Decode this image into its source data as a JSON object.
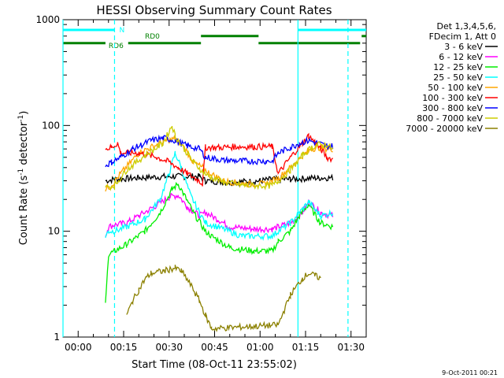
{
  "chart_data": {
    "type": "line",
    "title": "HESSI Observing Summary Count Rates",
    "xlabel": "Start Time (08-Oct-11 23:55:02)",
    "ylabel_parts": [
      "Count Rate (s",
      "-1",
      " detector",
      "-1",
      ")"
    ],
    "yscale": "log",
    "ylim": [
      1,
      1000
    ],
    "xlim_minutes": [
      -5,
      95
    ],
    "x_tick_minutes": [
      0,
      15,
      30,
      45,
      60,
      75,
      90
    ],
    "x_tick_labels": [
      "00:00",
      "00:15",
      "00:30",
      "00:45",
      "01:00",
      "01:15",
      "01:30"
    ],
    "y_tick_labels": [
      {
        "v": 1,
        "label": "1"
      },
      {
        "v": 10,
        "label": "10"
      },
      {
        "v": 100,
        "label": "100"
      },
      {
        "v": 1000,
        "label": "1000"
      }
    ],
    "legend_header": [
      "Det 1,3,4,5,6,",
      "FDecim 1, Att 0"
    ],
    "legend_placement": "right-outside",
    "series": [
      {
        "name": "3 - 6 keV",
        "color": "#000000",
        "points": [
          [
            9,
            30
          ],
          [
            12,
            31
          ],
          [
            20,
            32
          ],
          [
            30,
            33
          ],
          [
            40,
            33
          ],
          [
            42,
            30
          ],
          [
            50,
            29
          ],
          [
            60,
            30
          ],
          [
            64,
            31
          ],
          [
            70,
            31
          ],
          [
            79,
            32
          ],
          [
            84,
            32
          ]
        ]
      },
      {
        "name": "6 - 12 keV",
        "color": "#ff00ff",
        "points": [
          [
            9,
            9
          ],
          [
            10,
            11
          ],
          [
            12,
            11.5
          ],
          [
            16,
            12
          ],
          [
            20,
            14
          ],
          [
            25,
            17
          ],
          [
            30,
            21
          ],
          [
            33,
            22
          ],
          [
            36,
            17
          ],
          [
            40,
            14
          ],
          [
            42,
            15
          ],
          [
            46,
            13
          ],
          [
            50,
            11
          ],
          [
            58,
            10.5
          ],
          [
            64,
            10.5
          ],
          [
            66,
            11
          ],
          [
            70,
            12
          ],
          [
            74,
            15
          ],
          [
            76,
            19
          ],
          [
            79,
            16
          ],
          [
            80,
            15
          ],
          [
            84,
            14
          ]
        ]
      },
      {
        "name": "12 - 25 keV",
        "color": "#00ee00",
        "points": [
          [
            9,
            2
          ],
          [
            10,
            6
          ],
          [
            12,
            6.5
          ],
          [
            16,
            7.5
          ],
          [
            22,
            10
          ],
          [
            27,
            15
          ],
          [
            31,
            25
          ],
          [
            33,
            28
          ],
          [
            35,
            22
          ],
          [
            38,
            15
          ],
          [
            42,
            10
          ],
          [
            44,
            9
          ],
          [
            50,
            7
          ],
          [
            58,
            6.5
          ],
          [
            64,
            6.5
          ],
          [
            66,
            8
          ],
          [
            70,
            10
          ],
          [
            73,
            14
          ],
          [
            76,
            18
          ],
          [
            79,
            13
          ],
          [
            80,
            12
          ],
          [
            84,
            11
          ]
        ]
      },
      {
        "name": "25 - 50 keV",
        "color": "#00ffff",
        "points": [
          [
            9,
            9
          ],
          [
            10,
            10
          ],
          [
            12,
            10
          ],
          [
            16,
            11
          ],
          [
            22,
            13
          ],
          [
            27,
            20
          ],
          [
            30,
            35
          ],
          [
            32,
            55
          ],
          [
            34,
            40
          ],
          [
            37,
            22
          ],
          [
            40,
            15
          ],
          [
            42,
            12
          ],
          [
            46,
            11
          ],
          [
            54,
            9
          ],
          [
            64,
            9
          ],
          [
            66,
            10
          ],
          [
            70,
            12
          ],
          [
            73,
            15
          ],
          [
            76,
            19
          ],
          [
            79,
            15
          ],
          [
            80,
            14
          ],
          [
            84,
            15
          ]
        ]
      },
      {
        "name": "50 - 100 keV",
        "color": "#ffa500",
        "points": [
          [
            9,
            25
          ],
          [
            11,
            27
          ],
          [
            14,
            35
          ],
          [
            20,
            55
          ],
          [
            28,
            70
          ],
          [
            32,
            75
          ],
          [
            35,
            62
          ],
          [
            38,
            45
          ],
          [
            41,
            40
          ],
          [
            43,
            36
          ],
          [
            48,
            30
          ],
          [
            55,
            28
          ],
          [
            62,
            28
          ],
          [
            66,
            32
          ],
          [
            70,
            40
          ],
          [
            74,
            52
          ],
          [
            77,
            60
          ],
          [
            79,
            62
          ],
          [
            82,
            60
          ],
          [
            84,
            60
          ]
        ]
      },
      {
        "name": "100 - 300 keV",
        "color": "#ff0000",
        "points": [
          [
            9,
            60
          ],
          [
            11,
            62
          ],
          [
            13,
            68
          ],
          [
            14,
            55
          ],
          [
            20,
            55
          ],
          [
            26,
            50
          ],
          [
            30,
            45
          ],
          [
            33,
            40
          ],
          [
            36,
            35
          ],
          [
            40,
            30
          ],
          [
            41,
            28
          ],
          [
            42,
            62
          ],
          [
            47,
            62
          ],
          [
            52,
            63
          ],
          [
            58,
            63
          ],
          [
            64,
            63
          ],
          [
            66,
            35
          ],
          [
            70,
            50
          ],
          [
            74,
            68
          ],
          [
            76,
            80
          ],
          [
            78,
            70
          ],
          [
            80,
            60
          ],
          [
            82,
            50
          ],
          [
            84,
            48
          ]
        ]
      },
      {
        "name": "300 - 800 keV",
        "color": "#0000ff",
        "points": [
          [
            9,
            42
          ],
          [
            11,
            45
          ],
          [
            14,
            50
          ],
          [
            18,
            60
          ],
          [
            24,
            72
          ],
          [
            28,
            76
          ],
          [
            32,
            72
          ],
          [
            36,
            64
          ],
          [
            40,
            60
          ],
          [
            42,
            50
          ],
          [
            48,
            47
          ],
          [
            55,
            46
          ],
          [
            62,
            46
          ],
          [
            64,
            46
          ],
          [
            66,
            55
          ],
          [
            70,
            62
          ],
          [
            73,
            68
          ],
          [
            76,
            72
          ],
          [
            79,
            68
          ],
          [
            82,
            64
          ],
          [
            84,
            64
          ]
        ]
      },
      {
        "name": "800 - 7000 keV",
        "color": "#cccc00",
        "points": [
          [
            9,
            26
          ],
          [
            12,
            27
          ],
          [
            16,
            38
          ],
          [
            22,
            52
          ],
          [
            28,
            68
          ],
          [
            31,
            100
          ],
          [
            32,
            80
          ],
          [
            35,
            60
          ],
          [
            38,
            45
          ],
          [
            41,
            37
          ],
          [
            43,
            33
          ],
          [
            48,
            29
          ],
          [
            55,
            27
          ],
          [
            62,
            27
          ],
          [
            64,
            27
          ],
          [
            66,
            30
          ],
          [
            70,
            38
          ],
          [
            74,
            52
          ],
          [
            77,
            62
          ],
          [
            79,
            66
          ],
          [
            82,
            65
          ],
          [
            84,
            60
          ]
        ]
      },
      {
        "name": "7000 - 20000 keV",
        "color": "#8b8000",
        "points": [
          [
            16,
            1.6
          ],
          [
            18,
            2.2
          ],
          [
            20,
            2.8
          ],
          [
            22,
            3.5
          ],
          [
            24,
            4
          ],
          [
            28,
            4.2
          ],
          [
            32,
            4.5
          ],
          [
            34,
            4.2
          ],
          [
            36,
            3.5
          ],
          [
            38,
            2.8
          ],
          [
            40,
            2.2
          ],
          [
            42,
            1.6
          ],
          [
            44,
            1.2
          ],
          [
            66,
            1.3
          ],
          [
            68,
            1.8
          ],
          [
            70,
            2.5
          ],
          [
            72,
            3
          ],
          [
            74,
            3.6
          ],
          [
            76,
            4
          ],
          [
            78,
            3.8
          ],
          [
            80,
            3.6
          ]
        ]
      }
    ],
    "vertical_markers_minutes": [
      {
        "x": -5,
        "style": "solid"
      },
      {
        "x": 12,
        "style": "dashed"
      },
      {
        "x": 72.5,
        "style": "solid"
      },
      {
        "x": 89,
        "style": "dashed"
      }
    ],
    "status_bars": [
      {
        "label": "N",
        "color": "#00ffff",
        "y": 800,
        "segments": [
          [
            -5,
            12
          ],
          [
            72.5,
            95
          ]
        ]
      },
      {
        "label": "RD0",
        "color": "#008000",
        "y": 700,
        "segments": [
          [
            40.5,
            59.5
          ],
          [
            93.5,
            95
          ]
        ]
      },
      {
        "label": "RD6",
        "color": "#008000",
        "y": 600,
        "segments": [
          [
            -5,
            9
          ],
          [
            16.5,
            40.5
          ],
          [
            59.5,
            93
          ]
        ]
      }
    ],
    "footer_timestamp": "9-Oct-2011 00:21"
  }
}
